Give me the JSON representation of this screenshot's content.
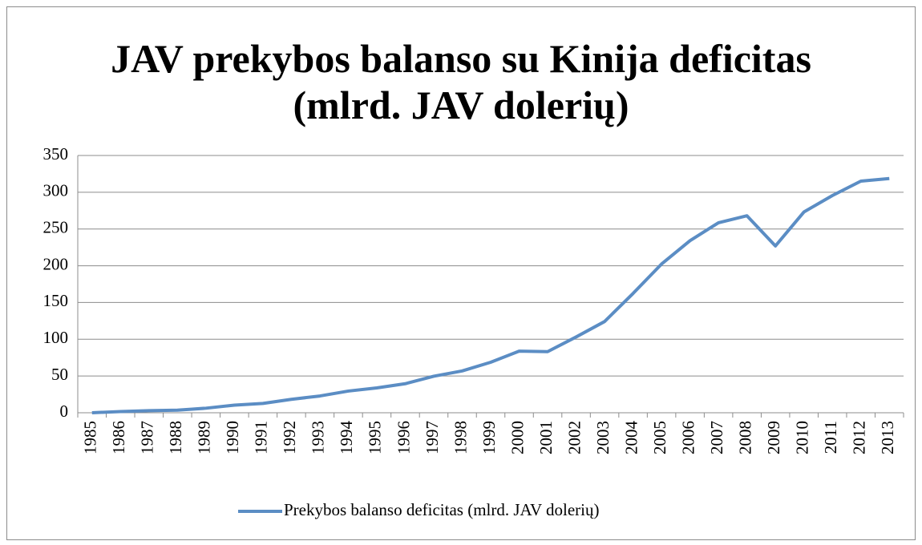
{
  "chart_data": {
    "type": "line",
    "title": "JAV prekybos balanso su Kinija deficitas (mlrd. JAV dolerių)",
    "categories": [
      "1985",
      "1986",
      "1987",
      "1988",
      "1989",
      "1990",
      "1991",
      "1992",
      "1993",
      "1994",
      "1995",
      "1996",
      "1997",
      "1998",
      "1999",
      "2000",
      "2001",
      "2002",
      "2003",
      "2004",
      "2005",
      "2006",
      "2007",
      "2008",
      "2009",
      "2010",
      "2011",
      "2012",
      "2013"
    ],
    "series": [
      {
        "name": "Prekybos balanso deficitas (mlrd. JAV dolerių)",
        "color": "#5b8dc4",
        "values": [
          0,
          1.7,
          2.8,
          3.5,
          6.2,
          10.4,
          12.7,
          18.3,
          22.8,
          29.5,
          33.8,
          39.5,
          49.7,
          56.9,
          68.7,
          83.8,
          83.1,
          103.1,
          124.1,
          162.3,
          202.3,
          234.1,
          258.5,
          268.0,
          226.9,
          273.1,
          295.5,
          315.1,
          318.7
        ]
      }
    ],
    "ylim": [
      0,
      350
    ],
    "yticks": [
      0,
      50,
      100,
      150,
      200,
      250,
      300,
      350
    ],
    "grid": true,
    "legend": "bottom"
  }
}
